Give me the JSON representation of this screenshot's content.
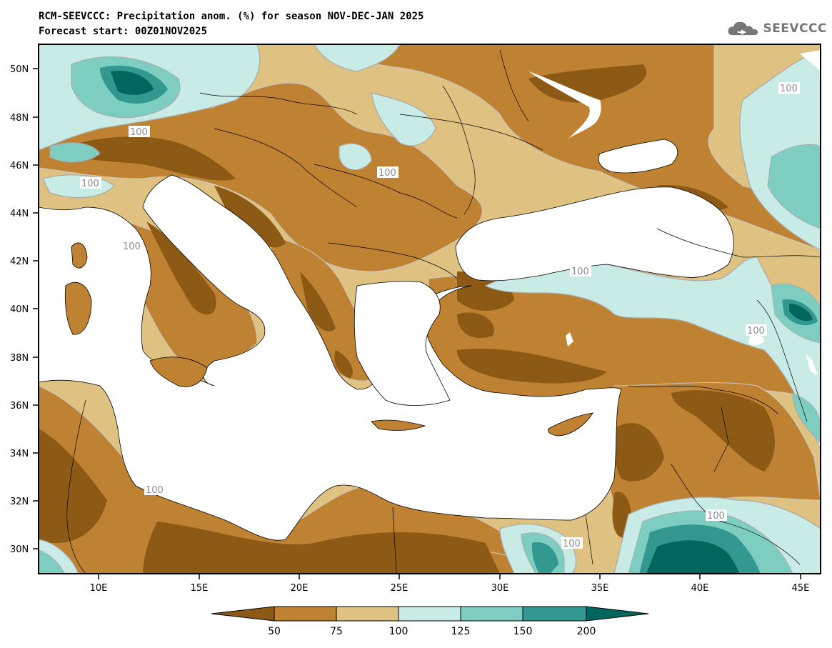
{
  "header": {
    "title": "RCM-SEEVCCC: Precipitation anom. (%) for season NOV-DEC-JAN 2025",
    "subtitle": "Forecast start: 00Z01NOV2025"
  },
  "logo": {
    "text": "SEEVCCC",
    "icon": "cloud-icon"
  },
  "map": {
    "variable": "Precipitation anomaly (%)",
    "season": "NOV-DEC-JAN 2025",
    "lat_ticks": [
      "30N",
      "32N",
      "34N",
      "36N",
      "38N",
      "40N",
      "42N",
      "44N",
      "46N",
      "48N",
      "50N"
    ],
    "lon_ticks": [
      "10E",
      "15E",
      "20E",
      "25E",
      "30E",
      "35E",
      "40E",
      "45E"
    ],
    "contour_labels": [
      "100",
      "100",
      "100",
      "100",
      "100",
      "100",
      "100",
      "100",
      "100",
      "100"
    ]
  },
  "colorbar": {
    "levels": [
      "50",
      "75",
      "100",
      "125",
      "150",
      "200"
    ],
    "colors": [
      "#8c5a14",
      "#bf8232",
      "#dfc182",
      "#c8ebe5",
      "#7ecdc1",
      "#339990",
      "#01665e"
    ],
    "nan_color": "#ffffff"
  }
}
